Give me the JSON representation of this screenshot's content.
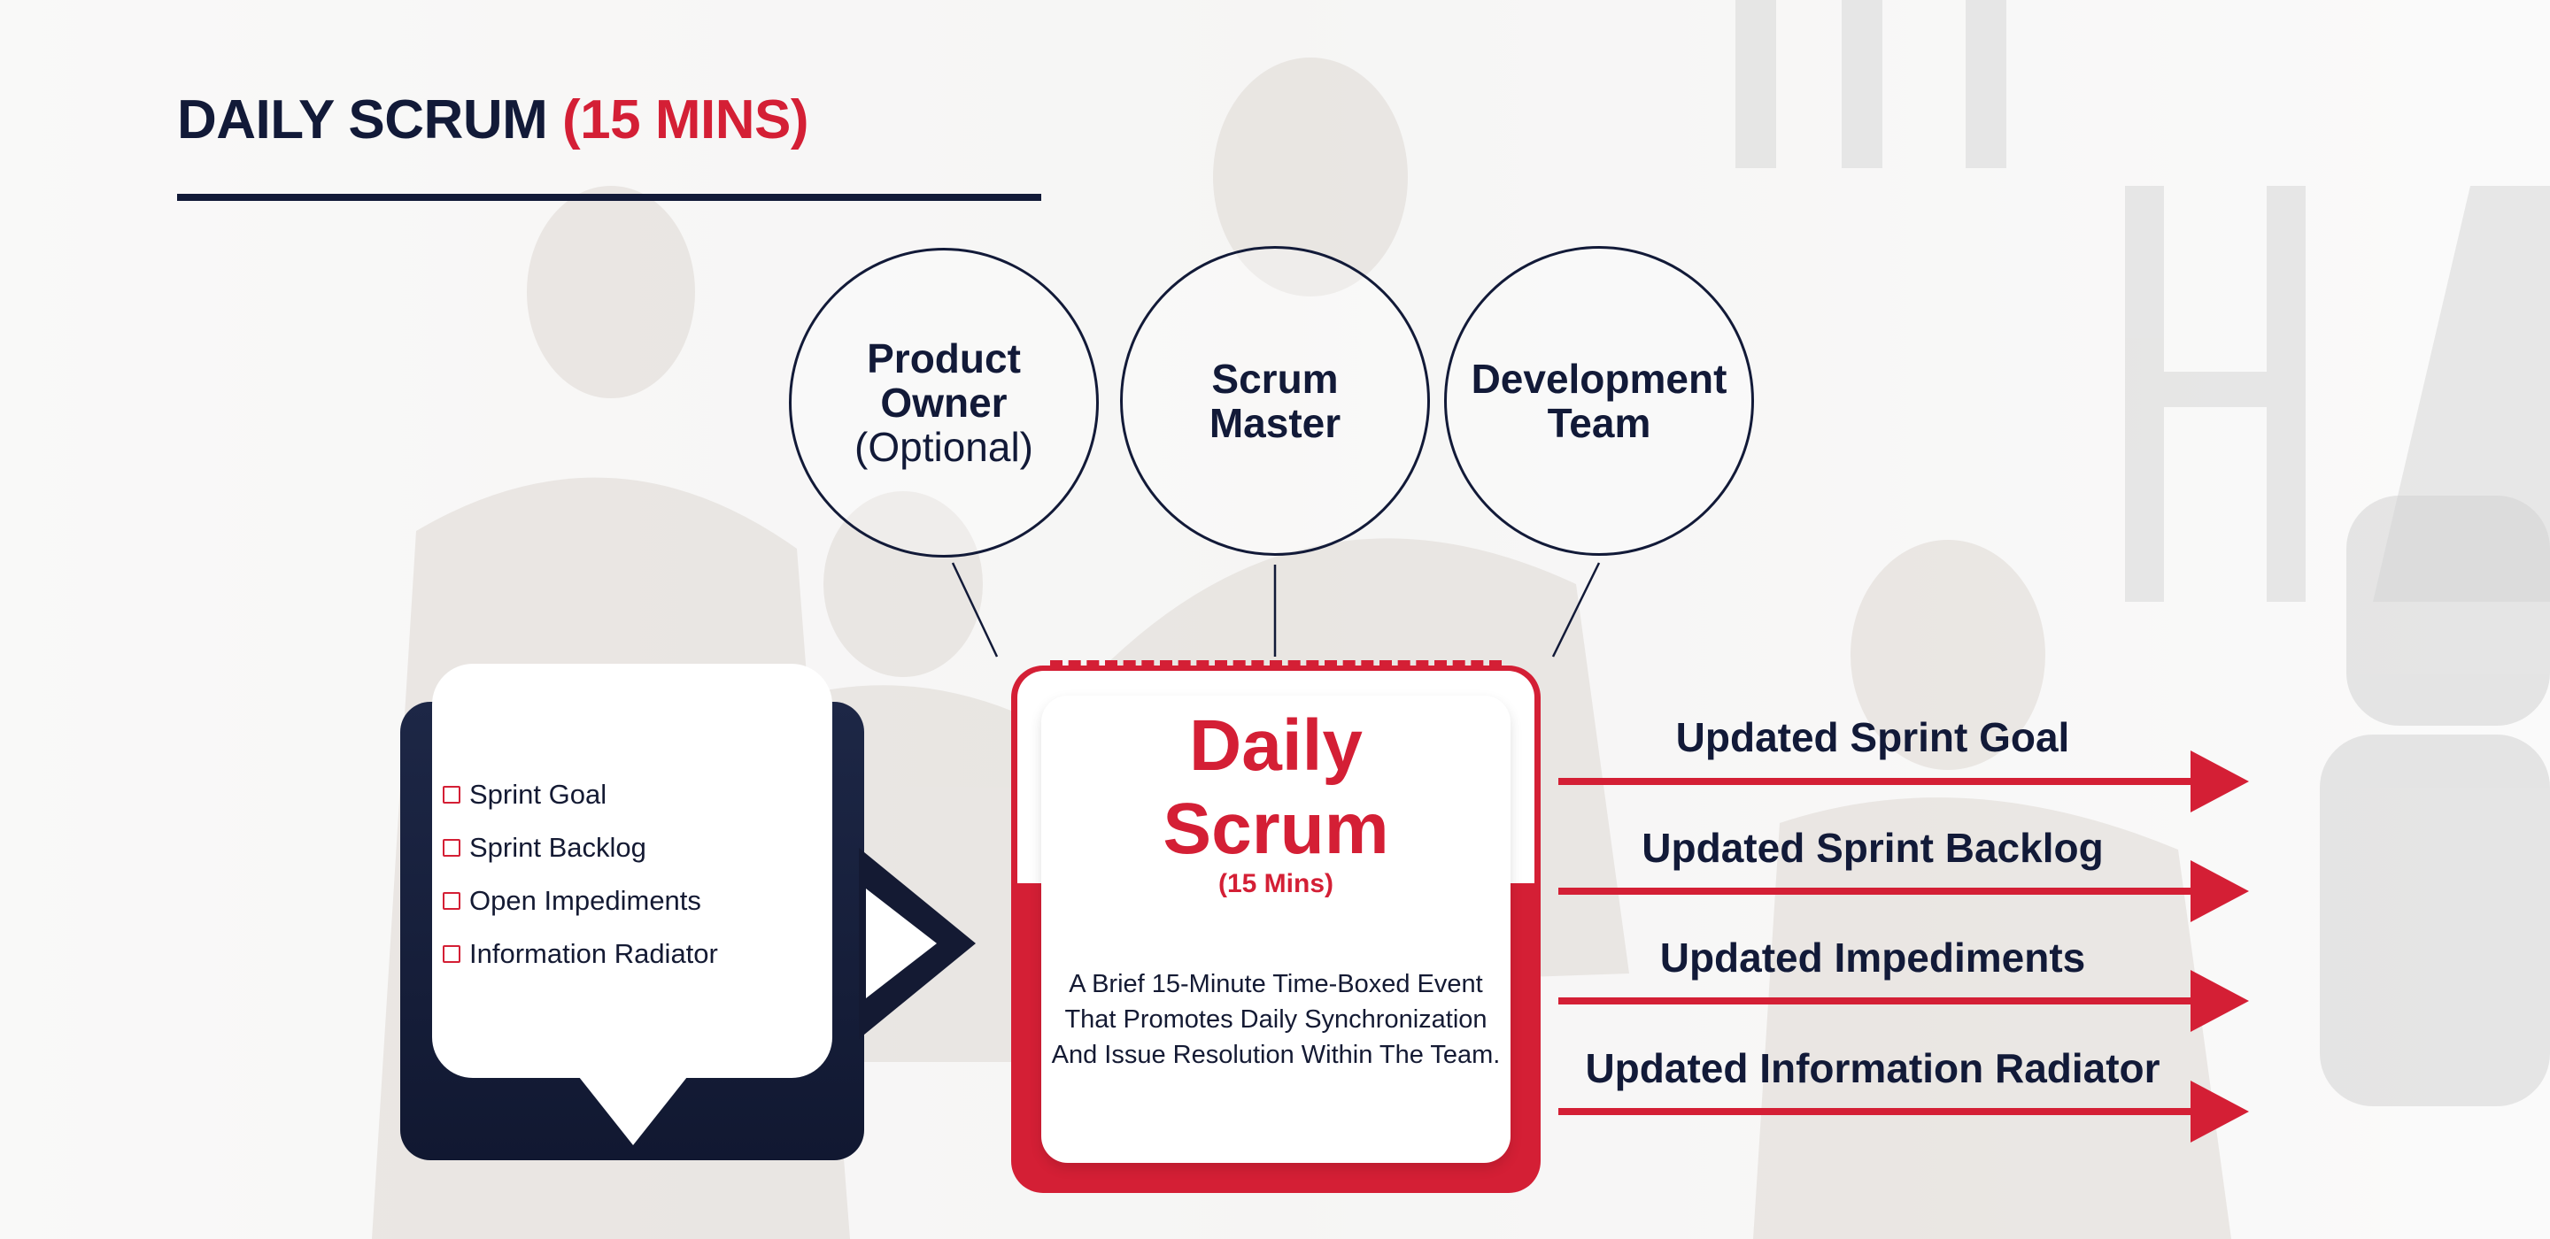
{
  "title": {
    "main": "DAILY SCRUM",
    "accent": "(15 MINS)"
  },
  "roles": [
    {
      "lines": [
        "Product",
        "Owner"
      ],
      "note": "(Optional)"
    },
    {
      "lines": [
        "Scrum",
        "Master"
      ]
    },
    {
      "lines": [
        "Development",
        "Team"
      ]
    }
  ],
  "inputs": [
    "Sprint Goal",
    "Sprint Backlog",
    "Open Impediments",
    "Information Radiator"
  ],
  "event": {
    "title_lines": [
      "Daily",
      "Scrum"
    ],
    "subtitle": "(15 Mins)",
    "description": "A Brief 15-Minute Time-Boxed Event That Promotes Daily Synchronization And Issue Resolution Within The Team."
  },
  "outputs": [
    "Updated Sprint Goal",
    "Updated Sprint Backlog",
    "Updated Impediments",
    "Updated Information Radiator"
  ],
  "colors": {
    "navy": "#121a38",
    "red": "#d41f35",
    "white": "#ffffff"
  }
}
